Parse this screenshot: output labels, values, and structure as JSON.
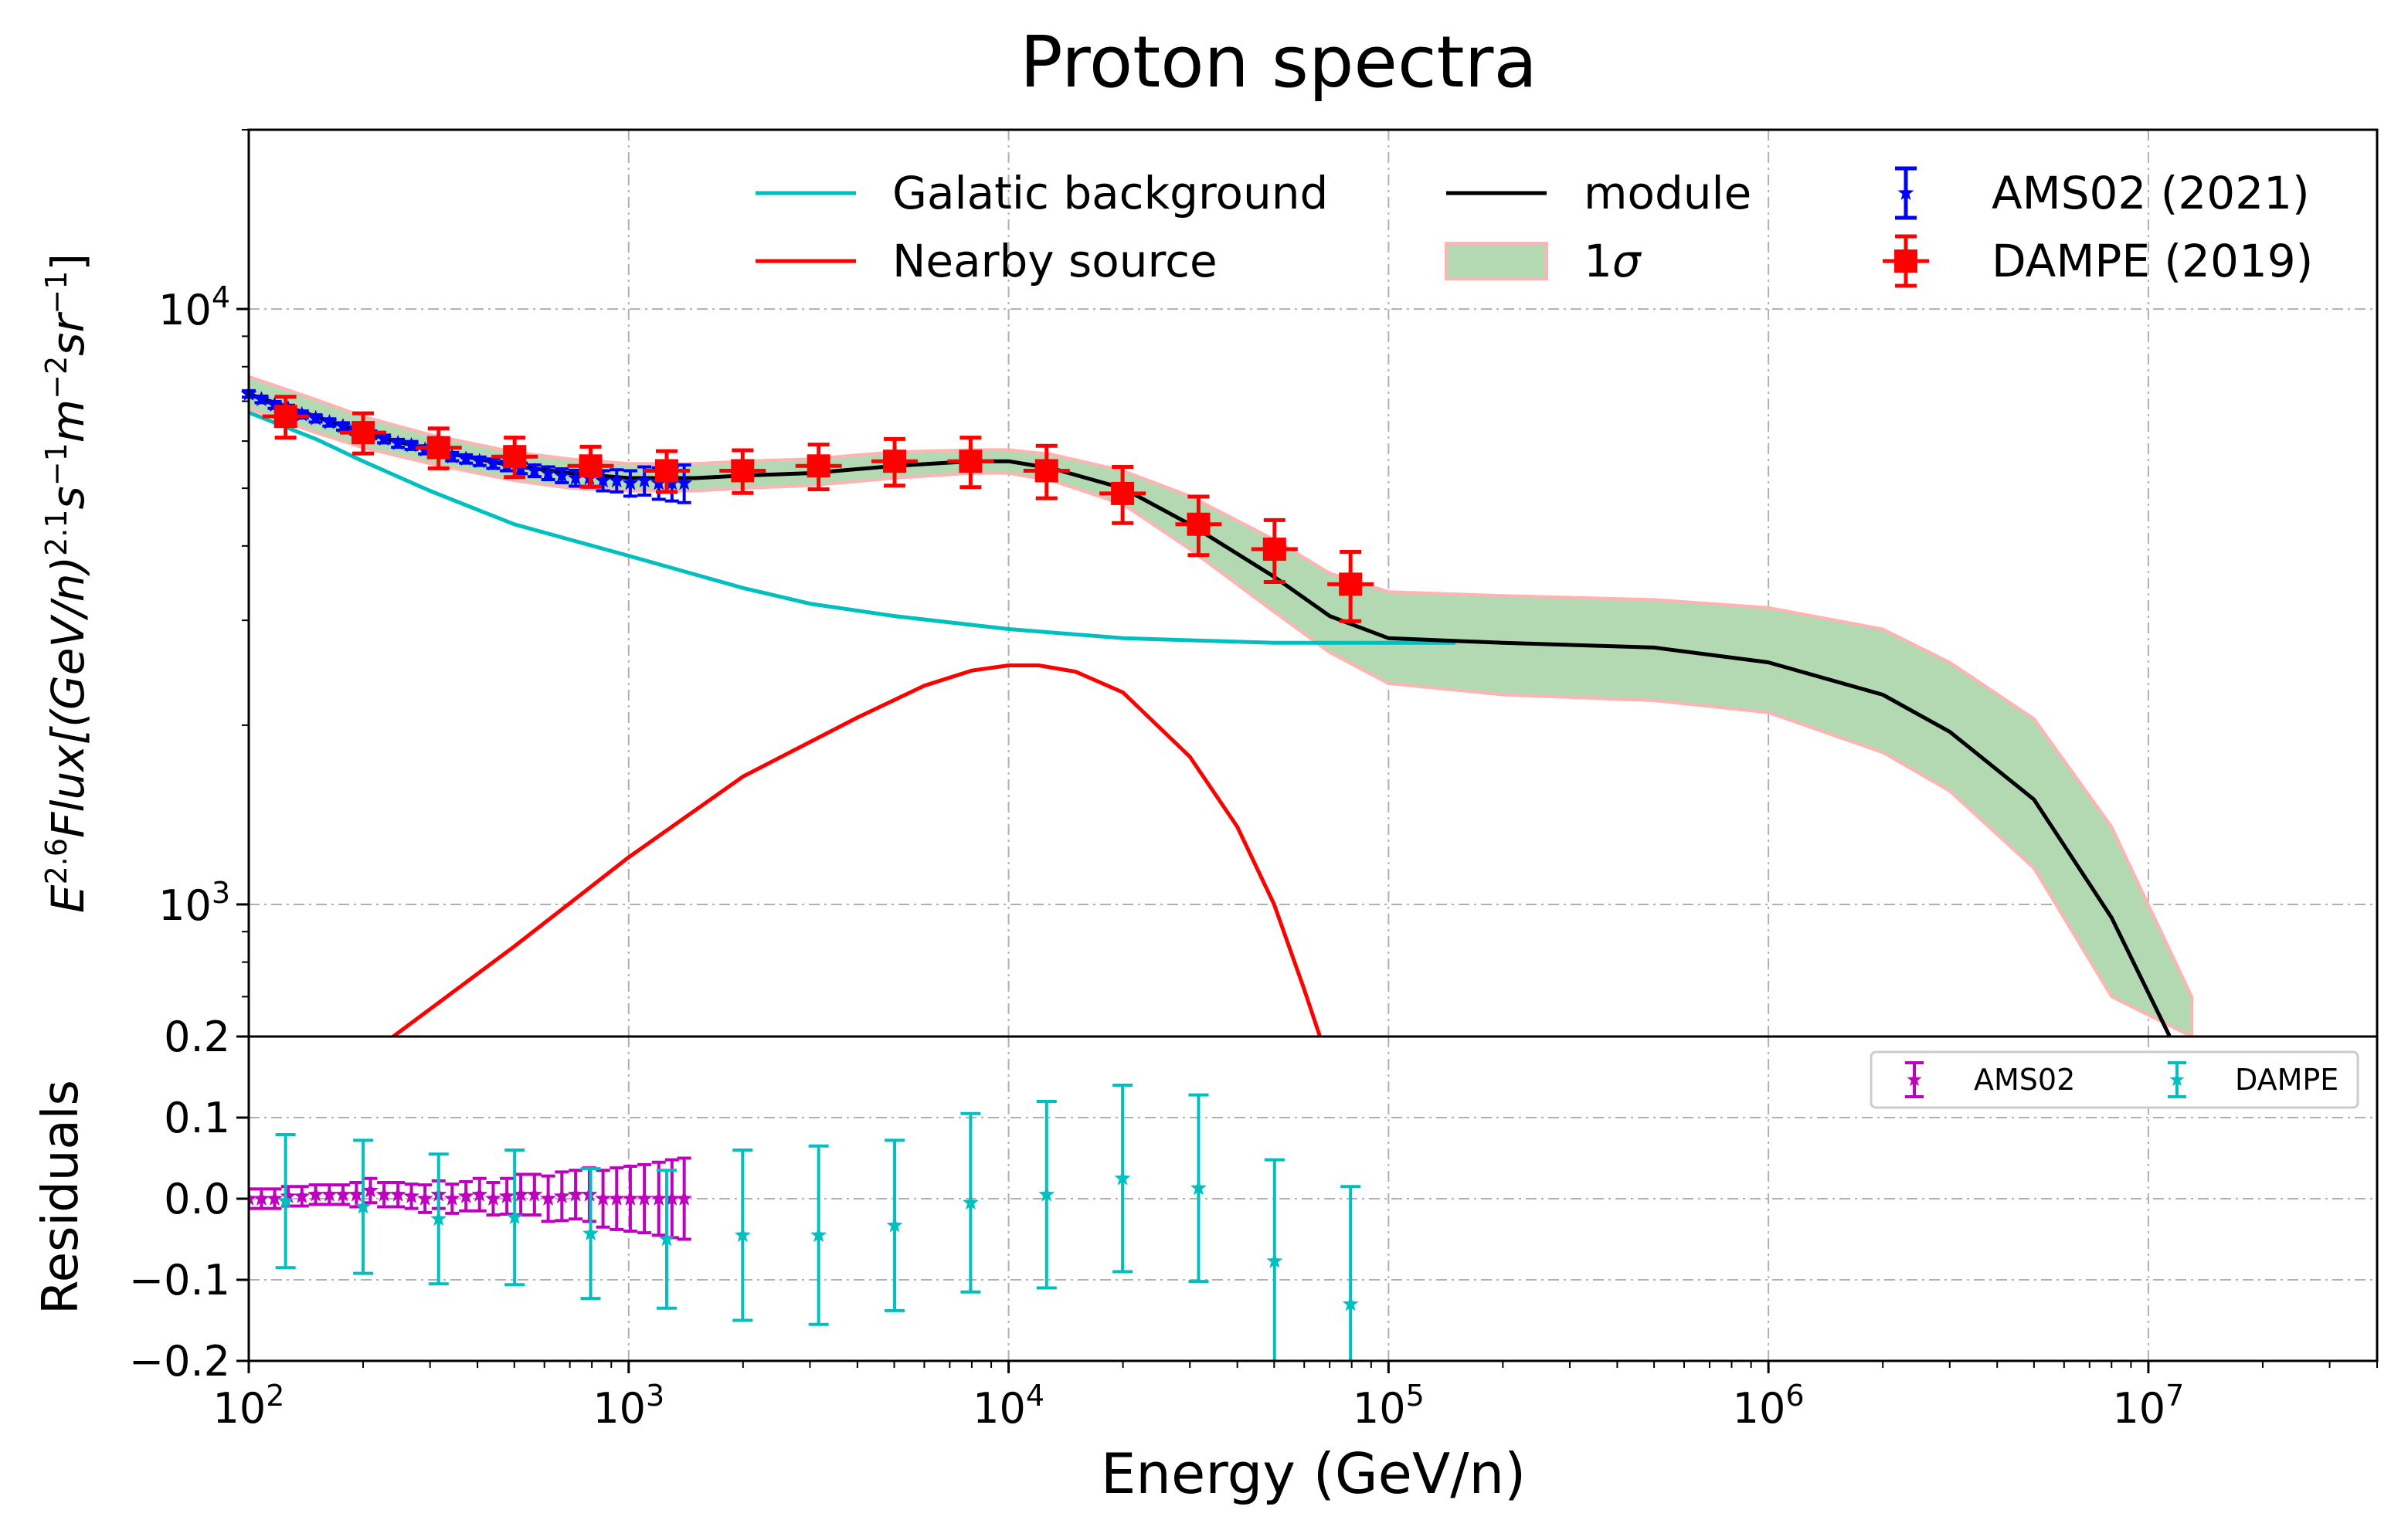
{
  "chart_data": [
    {
      "type": "line",
      "panel": "main",
      "title": "Proton spectra",
      "xlabel": "Energy (GeV/n)",
      "ylabel": "E^{2.6}Flux[(GeV/n)^{2.1}s^{-1}m^{-2}sr^{-1}]",
      "ylabel_parts": {
        "base": "E",
        "exp1": "2.6",
        "mid": "Flux[(GeV/n)",
        "exp2": "2.1",
        "s": "s",
        "exp3": "−1",
        "m": "m",
        "exp4": "−2",
        "sr": "sr",
        "exp5": "−1",
        "end": "]"
      },
      "xscale": "log",
      "yscale": "log",
      "xlim": [
        100,
        40000000
      ],
      "ylim": [
        600,
        20000
      ],
      "grid": true,
      "x_ticks": [
        {
          "value": 100,
          "base": "10",
          "exp": "2"
        },
        {
          "value": 1000,
          "base": "10",
          "exp": "3"
        },
        {
          "value": 10000,
          "base": "10",
          "exp": "4"
        },
        {
          "value": 100000,
          "base": "10",
          "exp": "5"
        },
        {
          "value": 1000000,
          "base": "10",
          "exp": "6"
        },
        {
          "value": 10000000,
          "base": "10",
          "exp": "7"
        }
      ],
      "y_ticks": [
        {
          "value": 1000,
          "base": "10",
          "exp": "3"
        },
        {
          "value": 10000,
          "base": "10",
          "exp": "4"
        }
      ],
      "legend": {
        "placement": "top-right",
        "entries": [
          "Galatic background",
          "Nearby source",
          "module",
          "1σ",
          "AMS02 (2021)",
          "DAMPE (2019)"
        ],
        "sigma_label": {
          "num": "1",
          "sym": "σ"
        }
      },
      "series": [
        {
          "name": "Galatic background",
          "kind": "line",
          "color": "#00bfbf",
          "x": [
            100,
            150,
            200,
            300,
            500,
            700,
            1000,
            2000,
            3000,
            5000,
            10000,
            20000,
            50000,
            100000,
            150000
          ],
          "y": [
            6700,
            6050,
            5550,
            4950,
            4350,
            4100,
            3850,
            3400,
            3200,
            3050,
            2900,
            2800,
            2750,
            2750,
            2750
          ]
        },
        {
          "name": "Nearby source",
          "kind": "line",
          "color": "#ff0000",
          "x": [
            240,
            500,
            1000,
            2000,
            4000,
            6000,
            8000,
            10000,
            12000,
            15000,
            20000,
            30000,
            40000,
            50000,
            60000,
            66000
          ],
          "y": [
            600,
            850,
            1200,
            1640,
            2060,
            2330,
            2470,
            2520,
            2520,
            2460,
            2270,
            1770,
            1350,
            1000,
            720,
            600
          ]
        },
        {
          "name": "module",
          "kind": "line",
          "color": "#000000",
          "x": [
            100,
            150,
            200,
            300,
            500,
            700,
            1000,
            1500,
            2000,
            3000,
            5000,
            8000,
            10000,
            13000,
            20000,
            30000,
            50000,
            70000,
            100000,
            200000,
            500000,
            1000000,
            2000000,
            3000000,
            5000000,
            8000000,
            12000000
          ],
          "y": [
            7200,
            6600,
            6200,
            5800,
            5450,
            5300,
            5200,
            5200,
            5250,
            5300,
            5450,
            5550,
            5550,
            5400,
            5000,
            4350,
            3550,
            3050,
            2800,
            2750,
            2700,
            2550,
            2250,
            1950,
            1500,
            950,
            560
          ]
        },
        {
          "name": "1σ",
          "kind": "band",
          "color": "#b3d9b3",
          "edge": "#ffb3b3",
          "x": [
            100,
            150,
            200,
            300,
            500,
            700,
            1000,
            1500,
            2000,
            3000,
            5000,
            8000,
            10000,
            13000,
            20000,
            30000,
            50000,
            70000,
            100000,
            200000,
            500000,
            1000000,
            2000000,
            3000000,
            5000000,
            8000000,
            13000000
          ],
          "upper": [
            7700,
            7050,
            6600,
            6150,
            5750,
            5600,
            5500,
            5500,
            5550,
            5600,
            5750,
            5800,
            5800,
            5700,
            5350,
            4850,
            4100,
            3600,
            3350,
            3300,
            3250,
            3150,
            2900,
            2550,
            2050,
            1350,
            700
          ],
          "lower": [
            6800,
            6200,
            5850,
            5500,
            5150,
            5000,
            4950,
            4950,
            5000,
            5050,
            5200,
            5300,
            5300,
            5150,
            4700,
            3950,
            3100,
            2650,
            2350,
            2250,
            2200,
            2100,
            1800,
            1550,
            1150,
            700,
            600
          ]
        },
        {
          "name": "AMS02 (2021)",
          "kind": "errorbar",
          "color": "#0000ff",
          "marker": "star",
          "x": [
            100,
            108,
            117,
            127,
            138,
            150,
            163,
            177,
            192,
            209,
            227,
            247,
            268,
            291,
            316,
            343,
            373,
            405,
            440,
            478,
            520,
            565,
            614,
            667,
            725,
            788,
            856,
            930,
            1010,
            1100,
            1200,
            1300,
            1400
          ],
          "y": [
            7200,
            7050,
            6900,
            6800,
            6650,
            6550,
            6450,
            6350,
            6250,
            6150,
            6050,
            5950,
            5900,
            5800,
            5750,
            5650,
            5600,
            5550,
            5500,
            5450,
            5400,
            5350,
            5300,
            5250,
            5200,
            5200,
            5150,
            5150,
            5100,
            5150,
            5100,
            5100,
            5100
          ],
          "yerr": [
            90,
            90,
            90,
            90,
            90,
            90,
            90,
            90,
            90,
            90,
            90,
            90,
            90,
            90,
            90,
            90,
            90,
            90,
            100,
            100,
            110,
            120,
            130,
            140,
            160,
            180,
            200,
            220,
            250,
            280,
            310,
            340,
            370
          ]
        },
        {
          "name": "DAMPE (2019)",
          "kind": "errorbar",
          "color": "#ff0000",
          "marker": "square",
          "x": [
            125,
            200,
            316,
            501,
            794,
            1259,
            1995,
            3162,
            5012,
            7943,
            12589,
            19953,
            31623,
            50119,
            79433
          ],
          "y": [
            6600,
            6200,
            5850,
            5650,
            5450,
            5350,
            5350,
            5450,
            5550,
            5550,
            5350,
            4900,
            4350,
            3950,
            3450
          ],
          "yerr": [
            520,
            480,
            450,
            430,
            420,
            420,
            440,
            470,
            500,
            530,
            540,
            530,
            490,
            470,
            460
          ]
        }
      ]
    },
    {
      "type": "scatter",
      "panel": "residuals",
      "xlabel": "Energy (GeV/n)",
      "ylabel": "Residuals",
      "xscale": "log",
      "xlim": [
        100,
        40000000
      ],
      "ylim": [
        -0.2,
        0.2
      ],
      "y_ticks": [
        {
          "value": 0.2,
          "label": "0.2"
        },
        {
          "value": 0.1,
          "label": "0.1"
        },
        {
          "value": 0.0,
          "label": "0.0"
        },
        {
          "value": -0.1,
          "label": "−0.1"
        },
        {
          "value": -0.2,
          "label": "−0.2"
        }
      ],
      "legend": {
        "placement": "top-right",
        "entries": [
          "AMS02",
          "DAMPE"
        ]
      },
      "series": [
        {
          "name": "AMS02",
          "color": "#bf00bf",
          "marker": "star",
          "x": [
            100,
            108,
            117,
            127,
            138,
            150,
            163,
            177,
            192,
            209,
            227,
            247,
            268,
            291,
            316,
            343,
            373,
            405,
            440,
            478,
            520,
            565,
            614,
            667,
            725,
            788,
            856,
            930,
            1010,
            1100,
            1200,
            1300,
            1400
          ],
          "y": [
            0.0,
            0.0,
            0.0,
            0.003,
            0.003,
            0.005,
            0.005,
            0.005,
            0.005,
            0.01,
            0.005,
            0.005,
            0.003,
            0.0,
            0.005,
            0.0,
            0.003,
            0.005,
            0.0,
            0.003,
            0.005,
            0.005,
            0.0,
            0.003,
            0.005,
            0.005,
            0.0,
            0.0,
            0.0,
            0.0,
            0.0,
            0.0,
            0.0
          ],
          "yerr": [
            0.012,
            0.012,
            0.012,
            0.012,
            0.012,
            0.012,
            0.012,
            0.012,
            0.015,
            0.015,
            0.015,
            0.015,
            0.015,
            0.017,
            0.017,
            0.018,
            0.018,
            0.02,
            0.02,
            0.022,
            0.025,
            0.025,
            0.028,
            0.03,
            0.03,
            0.033,
            0.035,
            0.038,
            0.04,
            0.042,
            0.045,
            0.048,
            0.05
          ]
        },
        {
          "name": "DAMPE",
          "color": "#00bfbf",
          "marker": "star",
          "x": [
            125,
            200,
            316,
            501,
            794,
            1259,
            1995,
            3162,
            5012,
            7943,
            12589,
            19953,
            31623,
            50119,
            79433
          ],
          "y": [
            -0.003,
            -0.01,
            -0.025,
            -0.023,
            -0.043,
            -0.05,
            -0.045,
            -0.045,
            -0.033,
            -0.005,
            0.005,
            0.025,
            0.013,
            -0.077,
            -0.13
          ],
          "yerr": [
            0.082,
            0.082,
            0.08,
            0.083,
            0.08,
            0.085,
            0.105,
            0.11,
            0.105,
            0.11,
            0.115,
            0.115,
            0.115,
            0.125,
            0.145
          ]
        }
      ]
    }
  ]
}
